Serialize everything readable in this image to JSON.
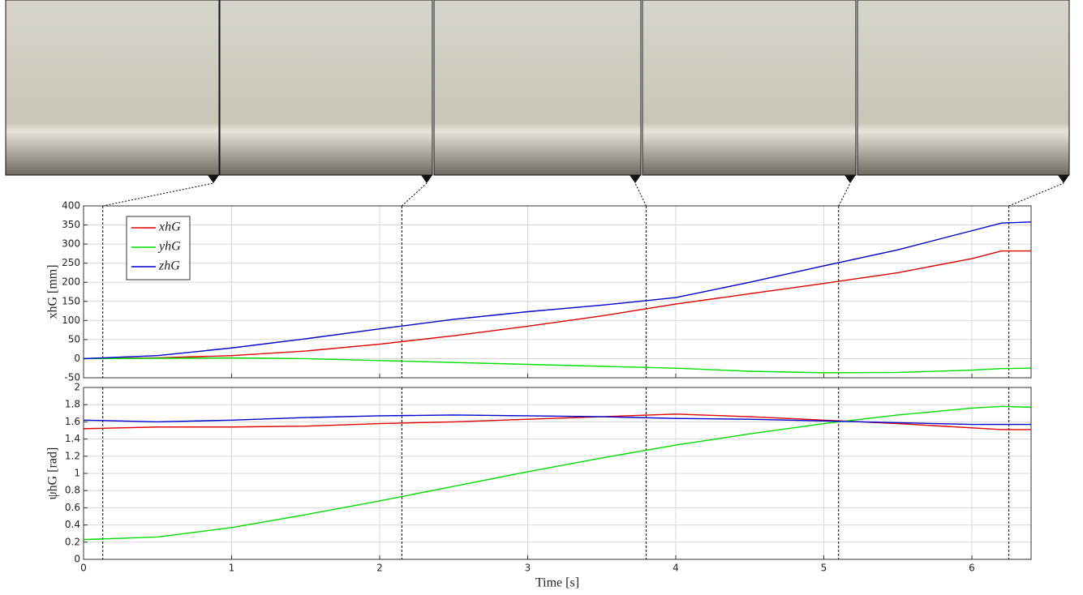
{
  "chart_data": [
    {
      "type": "line",
      "ylabel": "xhG [mm]",
      "x": [
        0,
        0.5,
        1,
        1.5,
        2,
        2.5,
        3,
        3.5,
        4,
        4.5,
        5,
        5.5,
        6,
        6.2,
        6.4
      ],
      "series": [
        {
          "name": "xhG",
          "color": "#e00000",
          "values": [
            0,
            2,
            8,
            20,
            38,
            60,
            85,
            112,
            143,
            170,
            197,
            225,
            262,
            282,
            282
          ]
        },
        {
          "name": "yhG",
          "color": "#00dd00",
          "values": [
            0,
            1,
            2,
            0,
            -5,
            -10,
            -15,
            -20,
            -25,
            -33,
            -37,
            -36,
            -30,
            -26,
            -25
          ]
        },
        {
          "name": "zhG",
          "color": "#0000cc",
          "values": [
            0,
            8,
            28,
            52,
            78,
            103,
            123,
            140,
            160,
            200,
            243,
            285,
            335,
            355,
            358
          ]
        }
      ],
      "xlim": [
        0,
        6.4
      ],
      "ylim": [
        -50,
        400
      ],
      "xticks": [
        0,
        1,
        2,
        3,
        4,
        5,
        6
      ],
      "yticks": [
        -50,
        0,
        50,
        100,
        150,
        200,
        250,
        300,
        350,
        400
      ],
      "grid": true,
      "legend": "upper-left",
      "vlines": [
        0.13,
        2.15,
        3.8,
        5.1,
        6.25
      ]
    },
    {
      "type": "line",
      "ylabel": "ψhG [rad]",
      "xlabel": "Time [s]",
      "x": [
        0,
        0.5,
        1,
        1.5,
        2,
        2.5,
        3,
        3.5,
        4,
        4.5,
        5,
        5.5,
        6,
        6.2,
        6.4
      ],
      "series": [
        {
          "color": "#e00000",
          "values": [
            1.52,
            1.54,
            1.54,
            1.55,
            1.58,
            1.6,
            1.63,
            1.66,
            1.69,
            1.66,
            1.62,
            1.58,
            1.53,
            1.51,
            1.51
          ]
        },
        {
          "color": "#00dd00",
          "values": [
            0.23,
            0.26,
            0.37,
            0.52,
            0.68,
            0.85,
            1.02,
            1.18,
            1.33,
            1.46,
            1.58,
            1.68,
            1.76,
            1.78,
            1.77
          ]
        },
        {
          "color": "#0000cc",
          "values": [
            1.62,
            1.6,
            1.62,
            1.65,
            1.67,
            1.68,
            1.67,
            1.66,
            1.64,
            1.63,
            1.61,
            1.59,
            1.57,
            1.57,
            1.57
          ]
        }
      ],
      "xlim": [
        0,
        6.4
      ],
      "ylim": [
        0,
        2
      ],
      "xticks": [
        0,
        1,
        2,
        3,
        4,
        5,
        6
      ],
      "yticks": [
        0,
        0.2,
        0.4,
        0.6,
        0.8,
        1,
        1.2,
        1.4,
        1.6,
        1.8,
        2
      ],
      "grid": true,
      "vlines": [
        0.13,
        2.15,
        3.8,
        5.1,
        6.25
      ]
    }
  ]
}
